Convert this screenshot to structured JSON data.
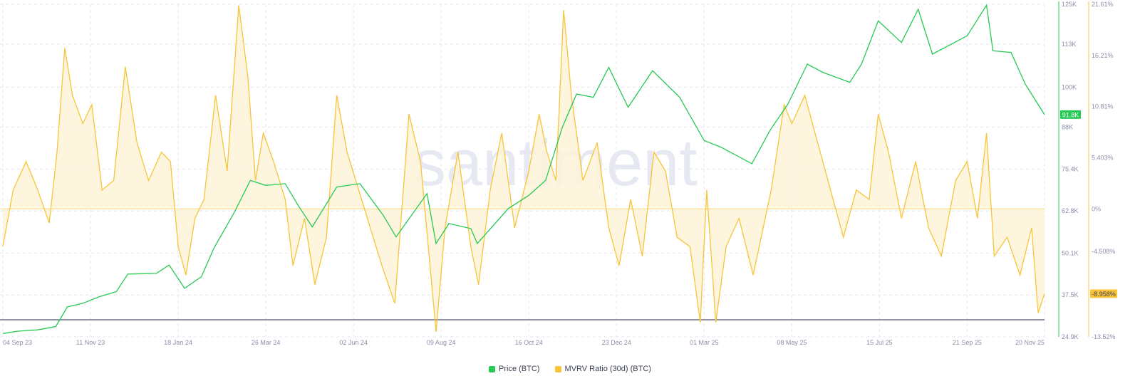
{
  "watermark": "santiment",
  "colors": {
    "price": "#26c953",
    "mvrv": "#f7c43a",
    "mvrv_fill": "#fdf3d8",
    "baseline": "#6b7083",
    "grid": "#e6e7ee",
    "axis_text": "#8a8fa8"
  },
  "legend": {
    "price_label": "Price (BTC)",
    "mvrv_label": "MVRV Ratio (30d) (BTC)"
  },
  "chart_data": {
    "type": "line",
    "x_ticks": [
      "04 Sep 23",
      "11 Nov 23",
      "18 Jan 24",
      "26 Mar 24",
      "02 Jun 24",
      "09 Aug 24",
      "16 Oct 24",
      "23 Dec 24",
      "01 Mar 25",
      "08 May 25",
      "15 Jul 25",
      "21 Sep 25",
      "20 Nov 25"
    ],
    "x_range": [
      "04 Sep 23",
      "20 Nov 25"
    ],
    "y_left": {
      "ticks": [
        "125K",
        "113K",
        "100K",
        "88K",
        "75.4K",
        "62.8K",
        "50.1K",
        "37.5K",
        "24.9K"
      ],
      "range": [
        24900,
        125000
      ],
      "current_label": "91.8K"
    },
    "y_right": {
      "ticks": [
        "21.61%",
        "16.21%",
        "10.81%",
        "5.403%",
        "0%",
        "-4.508%",
        "-13.52%"
      ],
      "range": [
        -13.52,
        21.61
      ],
      "current_label": "-8.958%"
    },
    "grid": true,
    "legend_position": "bottom-center",
    "series": [
      {
        "name": "Price (BTC)",
        "axis": "left",
        "points": [
          [
            "04 Sep 23",
            25900
          ],
          [
            "15 Sep 23",
            26600
          ],
          [
            "01 Oct 23",
            27000
          ],
          [
            "15 Oct 23",
            28000
          ],
          [
            "24 Oct 23",
            33900
          ],
          [
            "05 Nov 23",
            35000
          ],
          [
            "18 Nov 23",
            37000
          ],
          [
            "01 Dec 23",
            38500
          ],
          [
            "10 Dec 23",
            43800
          ],
          [
            "01 Jan 24",
            44000
          ],
          [
            "11 Jan 24",
            46500
          ],
          [
            "23 Jan 24",
            39500
          ],
          [
            "05 Feb 24",
            43000
          ],
          [
            "15 Feb 24",
            51800
          ],
          [
            "01 Mar 24",
            62000
          ],
          [
            "14 Mar 24",
            72000
          ],
          [
            "26 Mar 24",
            70500
          ],
          [
            "10 Apr 24",
            71000
          ],
          [
            "20 Apr 24",
            64500
          ],
          [
            "01 May 24",
            58000
          ],
          [
            "20 May 24",
            70000
          ],
          [
            "07 Jun 24",
            71000
          ],
          [
            "25 Jun 24",
            61500
          ],
          [
            "05 Jul 24",
            55000
          ],
          [
            "29 Jul 24",
            68000
          ],
          [
            "05 Aug 24",
            53000
          ],
          [
            "15 Aug 24",
            59000
          ],
          [
            "01 Sep 24",
            57500
          ],
          [
            "06 Sep 24",
            53000
          ],
          [
            "30 Sep 24",
            63500
          ],
          [
            "16 Oct 24",
            67500
          ],
          [
            "29 Oct 24",
            72000
          ],
          [
            "11 Nov 24",
            88000
          ],
          [
            "22 Nov 24",
            98000
          ],
          [
            "05 Dec 24",
            97000
          ],
          [
            "17 Dec 24",
            106000
          ],
          [
            "01 Jan 25",
            94000
          ],
          [
            "20 Jan 25",
            105000
          ],
          [
            "10 Feb 25",
            97000
          ],
          [
            "01 Mar 25",
            84000
          ],
          [
            "14 Mar 25",
            82000
          ],
          [
            "07 Apr 25",
            77000
          ],
          [
            "21 Apr 25",
            87000
          ],
          [
            "05 May 25",
            95000
          ],
          [
            "20 May 25",
            107000
          ],
          [
            "01 Jun 25",
            104500
          ],
          [
            "22 Jun 25",
            101500
          ],
          [
            "01 Jul 25",
            107000
          ],
          [
            "14 Jul 25",
            120000
          ],
          [
            "01 Aug 25",
            113500
          ],
          [
            "14 Aug 25",
            123500
          ],
          [
            "25 Aug 25",
            110000
          ],
          [
            "21 Sep 25",
            115500
          ],
          [
            "06 Oct 25",
            124700
          ],
          [
            "11 Oct 25",
            111000
          ],
          [
            "25 Oct 25",
            110500
          ],
          [
            "05 Nov 25",
            101000
          ],
          [
            "20 Nov 25",
            91800
          ]
        ]
      },
      {
        "name": "MVRV Ratio (30d) (BTC)",
        "axis": "right",
        "points": [
          [
            "04 Sep 23",
            -4
          ],
          [
            "12 Sep 23",
            2
          ],
          [
            "22 Sep 23",
            5
          ],
          [
            "01 Oct 23",
            2
          ],
          [
            "10 Oct 23",
            -1.5
          ],
          [
            "16 Oct 23",
            6
          ],
          [
            "22 Oct 23",
            17
          ],
          [
            "28 Oct 23",
            12
          ],
          [
            "05 Nov 23",
            9
          ],
          [
            "12 Nov 23",
            11
          ],
          [
            "20 Nov 23",
            2
          ],
          [
            "29 Nov 23",
            3
          ],
          [
            "08 Dec 23",
            15
          ],
          [
            "17 Dec 23",
            7
          ],
          [
            "26 Dec 23",
            3
          ],
          [
            "05 Jan 24",
            6
          ],
          [
            "12 Jan 24",
            5
          ],
          [
            "18 Jan 24",
            -4
          ],
          [
            "24 Jan 24",
            -7
          ],
          [
            "31 Jan 24",
            -1
          ],
          [
            "07 Feb 24",
            1
          ],
          [
            "16 Feb 24",
            12
          ],
          [
            "25 Feb 24",
            4
          ],
          [
            "05 Mar 24",
            21.5
          ],
          [
            "12 Mar 24",
            14
          ],
          [
            "18 Mar 24",
            3
          ],
          [
            "24 Mar 24",
            8
          ],
          [
            "01 Apr 24",
            5
          ],
          [
            "10 Apr 24",
            1
          ],
          [
            "16 Apr 24",
            -6
          ],
          [
            "25 Apr 24",
            -1
          ],
          [
            "03 May 24",
            -8
          ],
          [
            "12 May 24",
            -3
          ],
          [
            "20 May 24",
            12
          ],
          [
            "28 May 24",
            6
          ],
          [
            "06 Jun 24",
            2
          ],
          [
            "15 Jun 24",
            -2
          ],
          [
            "24 Jun 24",
            -6
          ],
          [
            "04 Jul 24",
            -10
          ],
          [
            "15 Jul 24",
            10
          ],
          [
            "24 Jul 24",
            5
          ],
          [
            "05 Aug 24",
            -13
          ],
          [
            "12 Aug 24",
            -2
          ],
          [
            "22 Aug 24",
            6
          ],
          [
            "01 Sep 24",
            -4
          ],
          [
            "07 Sep 24",
            -8
          ],
          [
            "16 Sep 24",
            2
          ],
          [
            "25 Sep 24",
            8
          ],
          [
            "05 Oct 24",
            -2
          ],
          [
            "16 Oct 24",
            4
          ],
          [
            "24 Oct 24",
            10
          ],
          [
            "30 Oct 24",
            6
          ],
          [
            "06 Nov 24",
            3
          ],
          [
            "12 Nov 24",
            21
          ],
          [
            "18 Nov 24",
            12
          ],
          [
            "27 Nov 24",
            3
          ],
          [
            "08 Dec 24",
            7
          ],
          [
            "17 Dec 24",
            -2
          ],
          [
            "25 Dec 24",
            -6
          ],
          [
            "03 Jan 25",
            1
          ],
          [
            "12 Jan 25",
            -5
          ],
          [
            "21 Jan 25",
            6
          ],
          [
            "30 Jan 25",
            4
          ],
          [
            "08 Feb 25",
            -3
          ],
          [
            "18 Feb 25",
            -4
          ],
          [
            "26 Feb 25",
            -12
          ],
          [
            "03 Mar 25",
            2
          ],
          [
            "10 Mar 25",
            -12
          ],
          [
            "18 Mar 25",
            -4
          ],
          [
            "28 Mar 25",
            -1
          ],
          [
            "08 Apr 25",
            -7
          ],
          [
            "22 Apr 25",
            2
          ],
          [
            "02 May 25",
            11
          ],
          [
            "08 May 25",
            9
          ],
          [
            "18 May 25",
            12
          ],
          [
            "28 May 25",
            7
          ],
          [
            "07 Jun 25",
            2
          ],
          [
            "17 Jun 25",
            -3
          ],
          [
            "27 Jun 25",
            2
          ],
          [
            "07 Jul 25",
            1
          ],
          [
            "14 Jul 25",
            10
          ],
          [
            "22 Jul 25",
            6
          ],
          [
            "01 Aug 25",
            -1
          ],
          [
            "12 Aug 25",
            5
          ],
          [
            "22 Aug 25",
            -2
          ],
          [
            "01 Sep 25",
            -5
          ],
          [
            "12 Sep 25",
            3
          ],
          [
            "21 Sep 25",
            5
          ],
          [
            "29 Sep 25",
            -1
          ],
          [
            "06 Oct 25",
            8
          ],
          [
            "12 Oct 25",
            -5
          ],
          [
            "22 Oct 25",
            -3
          ],
          [
            "01 Nov 25",
            -7
          ],
          [
            "10 Nov 25",
            -2
          ],
          [
            "15 Nov 25",
            -11
          ],
          [
            "20 Nov 25",
            -8.958
          ]
        ]
      }
    ]
  }
}
